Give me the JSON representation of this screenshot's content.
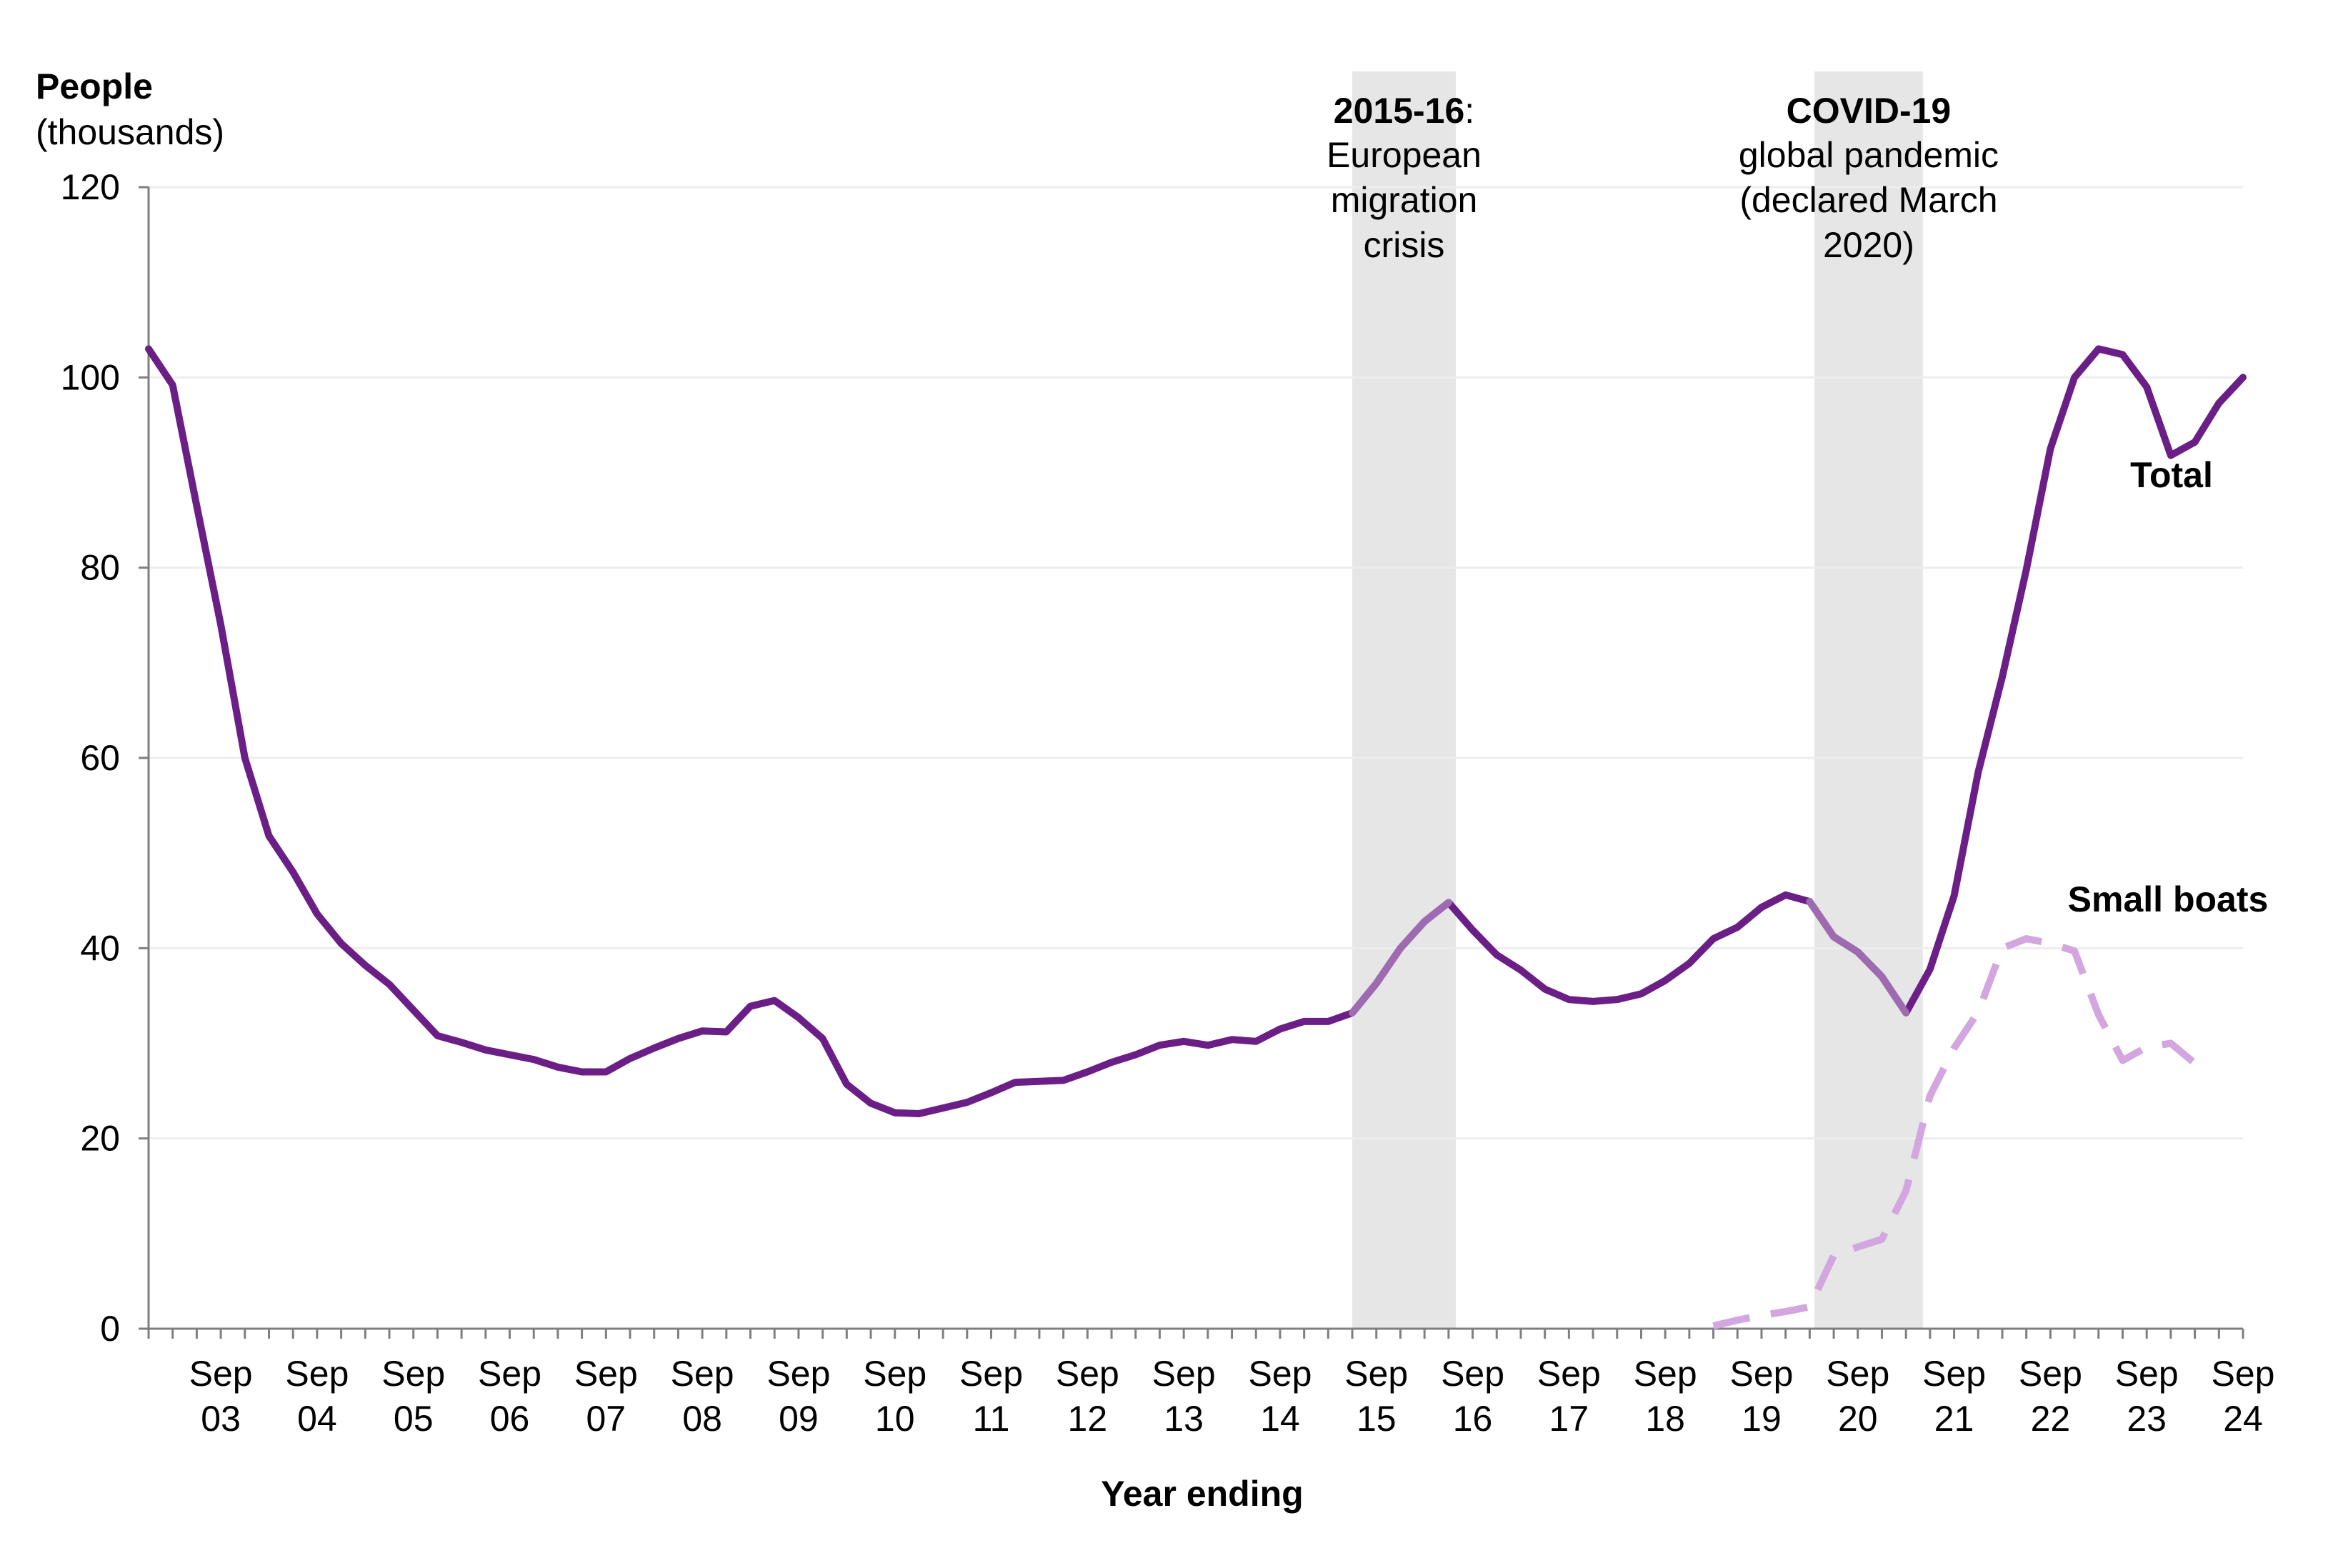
{
  "chart_data": {
    "type": "line",
    "ylabel_bold": "People",
    "ylabel_sub": "(thousands)",
    "xlabel": "Year ending",
    "ylim": [
      0,
      120
    ],
    "yticks": [
      "0",
      "20",
      "40",
      "60",
      "80",
      "100",
      "120"
    ],
    "grid": true,
    "x_start_quarter": "Dec 2002",
    "x_end_quarter": "Sep 2024",
    "tick_labels": [
      {
        "q": 3,
        "line1": "Sep",
        "line2": "03"
      },
      {
        "q": 7,
        "line1": "Sep",
        "line2": "04"
      },
      {
        "q": 11,
        "line1": "Sep",
        "line2": "05"
      },
      {
        "q": 15,
        "line1": "Sep",
        "line2": "06"
      },
      {
        "q": 19,
        "line1": "Sep",
        "line2": "07"
      },
      {
        "q": 23,
        "line1": "Sep",
        "line2": "08"
      },
      {
        "q": 27,
        "line1": "Sep",
        "line2": "09"
      },
      {
        "q": 31,
        "line1": "Sep",
        "line2": "10"
      },
      {
        "q": 35,
        "line1": "Sep",
        "line2": "11"
      },
      {
        "q": 39,
        "line1": "Sep",
        "line2": "12"
      },
      {
        "q": 43,
        "line1": "Sep",
        "line2": "13"
      },
      {
        "q": 47,
        "line1": "Sep",
        "line2": "14"
      },
      {
        "q": 51,
        "line1": "Sep",
        "line2": "15"
      },
      {
        "q": 55,
        "line1": "Sep",
        "line2": "16"
      },
      {
        "q": 59,
        "line1": "Sep",
        "line2": "17"
      },
      {
        "q": 63,
        "line1": "Sep",
        "line2": "18"
      },
      {
        "q": 67,
        "line1": "Sep",
        "line2": "19"
      },
      {
        "q": 71,
        "line1": "Sep",
        "line2": "20"
      },
      {
        "q": 75,
        "line1": "Sep",
        "line2": "21"
      },
      {
        "q": 79,
        "line1": "Sep",
        "line2": "22"
      },
      {
        "q": 83,
        "line1": "Sep",
        "line2": "23"
      },
      {
        "q": 87,
        "line1": "Sep",
        "line2": "24"
      }
    ],
    "shaded_periods": [
      {
        "from_q": 50,
        "to_q": 54.3,
        "label_bold": "2015-16",
        "label_suffix": ":",
        "label_lines": [
          "European",
          "migration",
          "crisis"
        ]
      },
      {
        "from_q": 69.2,
        "to_q": 73.7,
        "label_bold": "COVID-19",
        "label_suffix": "",
        "label_lines": [
          "global pandemic",
          "(declared March",
          "2020)"
        ]
      }
    ],
    "series": [
      {
        "name": "Total",
        "color": "#6b1f86",
        "highlight_color": "#9f6bb0",
        "style": "solid",
        "start_q": 0,
        "values": [
          103.0,
          99.2,
          86.5,
          74.0,
          60.0,
          51.8,
          48.0,
          43.6,
          40.5,
          38.2,
          36.2,
          33.5,
          30.8,
          30.1,
          29.3,
          28.8,
          28.3,
          27.5,
          27.0,
          27.0,
          28.4,
          29.5,
          30.5,
          31.3,
          31.2,
          33.9,
          34.5,
          32.7,
          30.5,
          25.7,
          23.7,
          22.7,
          22.6,
          23.2,
          23.8,
          24.8,
          25.9,
          26.0,
          26.1,
          27.0,
          28.0,
          28.8,
          29.8,
          30.2,
          29.8,
          30.4,
          30.2,
          31.5,
          32.3,
          32.3,
          33.2,
          36.3,
          40.0,
          42.8,
          44.8,
          41.9,
          39.3,
          37.7,
          35.7,
          34.6,
          34.4,
          34.6,
          35.2,
          36.6,
          38.4,
          41.0,
          42.2,
          44.3,
          45.6,
          44.9,
          41.2,
          39.6,
          37.0,
          33.2,
          37.8,
          45.5,
          58.5,
          68.5,
          79.8,
          92.5,
          100.0,
          103.0,
          102.4,
          99.0,
          91.8,
          93.2,
          97.3,
          100.0
        ],
        "highlight_ranges": [
          [
            50,
            54
          ],
          [
            69,
            73
          ]
        ],
        "end_label": "Total"
      },
      {
        "name": "Small boats",
        "color": "#d4a6e0",
        "style": "dashed",
        "start_q": 65,
        "values": [
          0.3,
          0.9,
          1.4,
          1.8,
          2.3,
          7.7,
          8.6,
          9.4,
          14.5,
          24.5,
          29.5,
          33.3,
          40.0,
          41.0,
          40.5,
          39.7,
          33.0,
          28.2,
          29.6,
          30.0,
          27.9
        ],
        "end_label": "Small boats"
      }
    ]
  }
}
